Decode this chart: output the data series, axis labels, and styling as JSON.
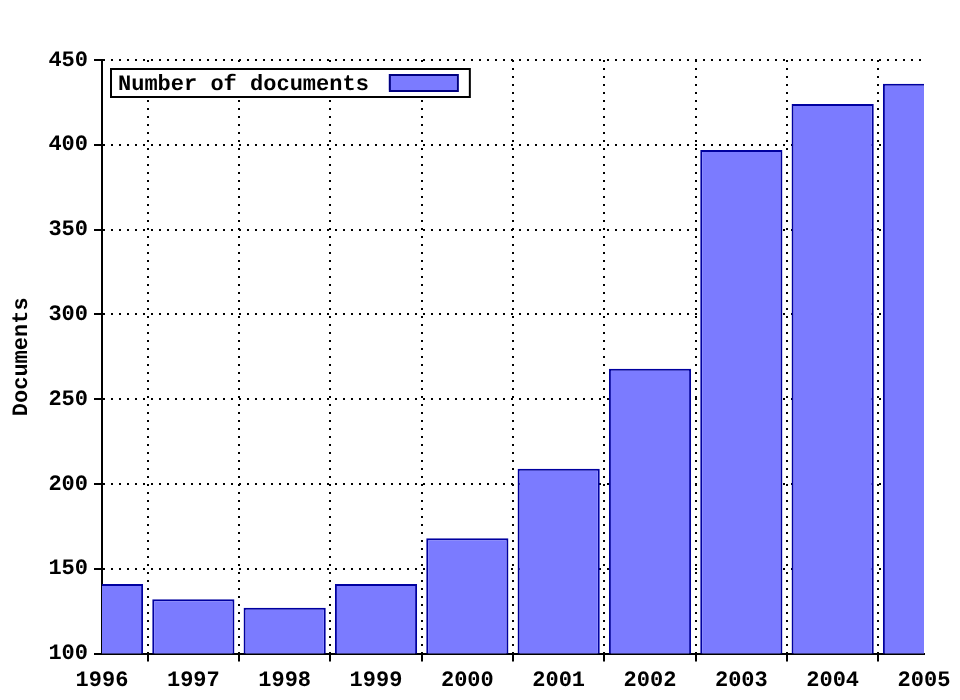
{
  "chart_data": {
    "type": "bar",
    "ylabel": "Documents",
    "categories": [
      "1996",
      "1997",
      "1998",
      "1999",
      "2000",
      "2001",
      "2002",
      "2003",
      "2004",
      "2005"
    ],
    "series": [
      {
        "name": "Number of documents",
        "color": "#7b7bff",
        "values": [
          141,
          132,
          127,
          141,
          168,
          209,
          268,
          397,
          424,
          436
        ]
      }
    ],
    "ylim": [
      100,
      450
    ],
    "yticks": [
      100,
      150,
      200,
      250,
      300,
      350,
      400,
      450
    ],
    "grid": true,
    "legend": "top left"
  }
}
